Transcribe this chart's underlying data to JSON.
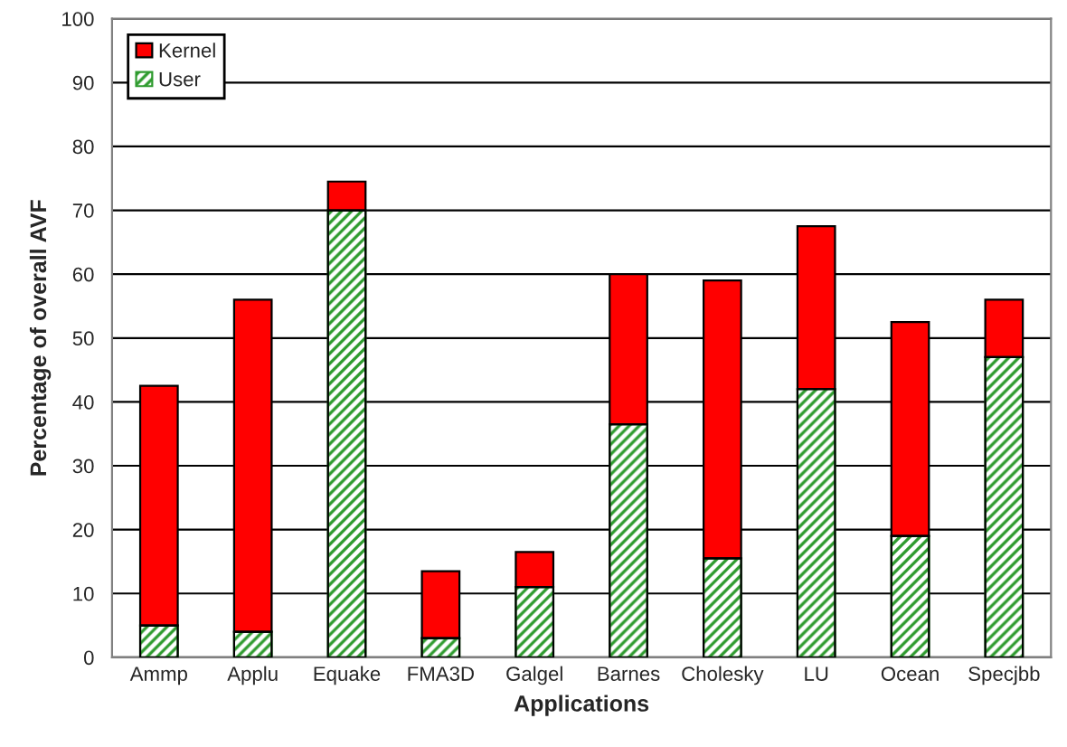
{
  "chart_data": {
    "type": "bar",
    "xlabel": "Applications",
    "ylabel": "Percentage of overall AVF",
    "categories": [
      "Ammp",
      "Applu",
      "Equake",
      "FMA3D",
      "Galgel",
      "Barnes",
      "Cholesky",
      "LU",
      "Ocean",
      "Specjbb"
    ],
    "stacked": true,
    "series": [
      {
        "name": "User",
        "color": "#2e9b2e",
        "values": [
          5,
          4,
          70,
          3,
          11,
          36.5,
          15.5,
          42,
          19,
          47
        ]
      },
      {
        "name": "Kernel",
        "color": "#ff0000",
        "values": [
          37.5,
          52,
          4.5,
          10.5,
          5.5,
          23.5,
          43.5,
          25.5,
          33.5,
          9
        ]
      }
    ],
    "ylim": [
      0,
      100
    ],
    "yticks": [
      0,
      10,
      20,
      30,
      40,
      50,
      60,
      70,
      80,
      90,
      100
    ],
    "grid": "y",
    "legend": "top left"
  }
}
